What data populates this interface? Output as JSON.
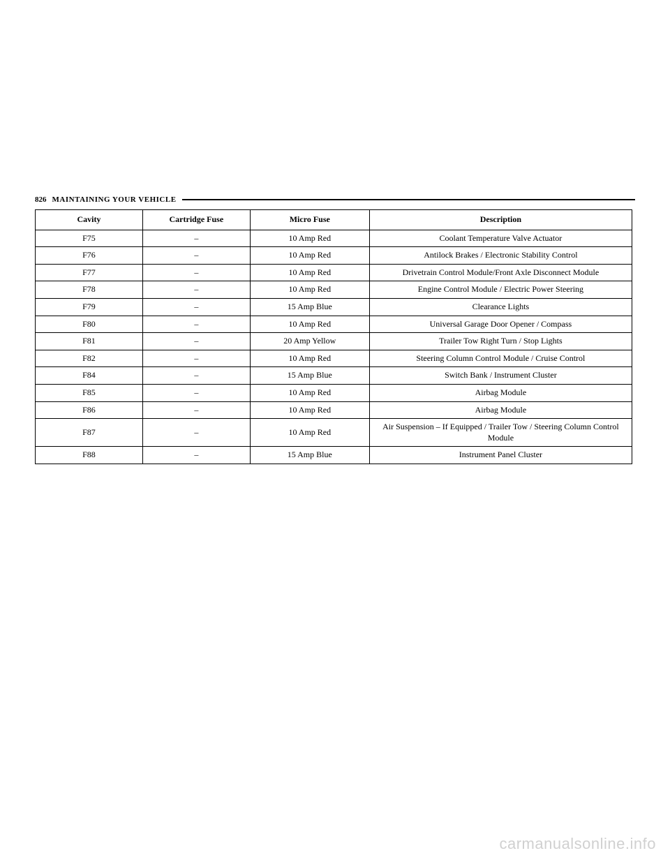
{
  "header": {
    "page_number": "826",
    "section_title": "MAINTAINING YOUR VEHICLE"
  },
  "table": {
    "columns": [
      "Cavity",
      "Cartridge Fuse",
      "Micro Fuse",
      "Description"
    ],
    "rows": [
      [
        "F75",
        "–",
        "10 Amp Red",
        "Coolant Temperature Valve Actuator"
      ],
      [
        "F76",
        "–",
        "10 Amp Red",
        "Antilock Brakes / Electronic Stability Control"
      ],
      [
        "F77",
        "–",
        "10 Amp Red",
        "Drivetrain Control Module/Front Axle Disconnect Module"
      ],
      [
        "F78",
        "–",
        "10 Amp Red",
        "Engine Control Module / Electric Power Steering"
      ],
      [
        "F79",
        "–",
        "15 Amp Blue",
        "Clearance Lights"
      ],
      [
        "F80",
        "–",
        "10 Amp Red",
        "Universal Garage Door Opener / Compass"
      ],
      [
        "F81",
        "–",
        "20 Amp Yellow",
        "Trailer Tow Right Turn / Stop Lights"
      ],
      [
        "F82",
        "–",
        "10 Amp Red",
        "Steering Column Control Module / Cruise Control"
      ],
      [
        "F84",
        "–",
        "15 Amp Blue",
        "Switch Bank / Instrument Cluster"
      ],
      [
        "F85",
        "–",
        "10 Amp Red",
        "Airbag Module"
      ],
      [
        "F86",
        "–",
        "10 Amp Red",
        "Airbag Module"
      ],
      [
        "F87",
        "–",
        "10 Amp Red",
        "Air Suspension – If Equipped / Trailer Tow / Steering Column Control Module"
      ],
      [
        "F88",
        "–",
        "15 Amp Blue",
        "Instrument Panel Cluster"
      ]
    ]
  },
  "watermark": "carmanualsonline.info"
}
